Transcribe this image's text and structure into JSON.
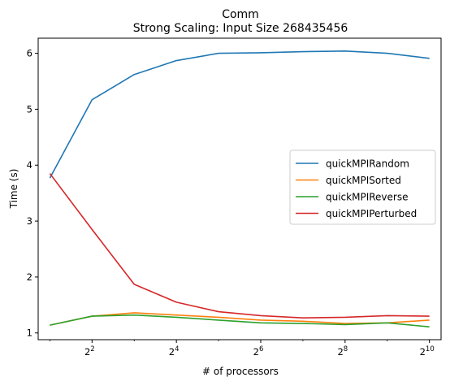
{
  "chart_data": {
    "type": "line",
    "title": "Comm",
    "subtitle": "Strong Scaling: Input Size 268435456",
    "xlabel": "# of processors",
    "ylabel": "Time (s)",
    "x_scale": "log2",
    "x": [
      2,
      4,
      8,
      16,
      32,
      64,
      128,
      256,
      512,
      1024
    ],
    "x_ticks": [
      {
        "value": 4,
        "base": "2",
        "exp": "2"
      },
      {
        "value": 16,
        "base": "2",
        "exp": "4"
      },
      {
        "value": 64,
        "base": "2",
        "exp": "6"
      },
      {
        "value": 256,
        "base": "2",
        "exp": "8"
      },
      {
        "value": 1024,
        "base": "2",
        "exp": "10"
      }
    ],
    "xlim": [
      1.65,
      1240
    ],
    "ylim": [
      0.88,
      6.27
    ],
    "y_ticks": [
      1,
      2,
      3,
      4,
      5,
      6
    ],
    "grid": false,
    "legend_position": "center-right",
    "series": [
      {
        "name": "quickMPIRandom",
        "color": "#1f77b4",
        "values": [
          3.77,
          5.17,
          5.62,
          5.87,
          6.0,
          6.01,
          6.03,
          6.04,
          6.0,
          5.91
        ]
      },
      {
        "name": "quickMPISorted",
        "color": "#ff7f0e",
        "values": [
          1.14,
          1.3,
          1.36,
          1.32,
          1.28,
          1.23,
          1.21,
          1.17,
          1.18,
          1.23
        ]
      },
      {
        "name": "quickMPIReverse",
        "color": "#2ca02c",
        "values": [
          1.14,
          1.3,
          1.32,
          1.28,
          1.23,
          1.18,
          1.17,
          1.15,
          1.18,
          1.11
        ]
      },
      {
        "name": "quickMPIPerturbed",
        "color": "#d62728",
        "values": [
          3.85,
          2.85,
          1.87,
          1.55,
          1.38,
          1.31,
          1.27,
          1.28,
          1.31,
          1.3
        ]
      }
    ]
  }
}
